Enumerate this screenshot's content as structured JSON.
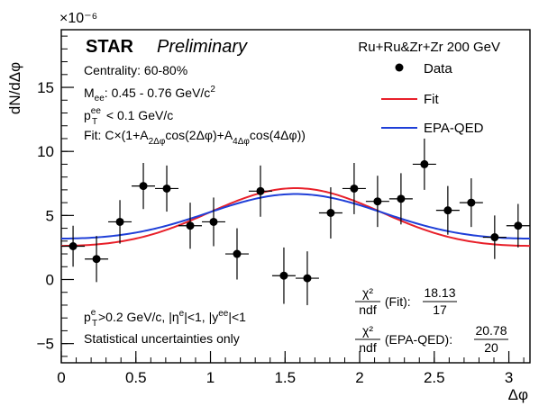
{
  "chart_data": {
    "type": "scatter",
    "title": "",
    "xlabel": "Δφ",
    "ylabel": "dN/dΔφ",
    "y_multiplier": "×10⁻⁶",
    "xlim": [
      0,
      3.1416
    ],
    "ylim": [
      -6.5,
      19.5
    ],
    "x_ticks": [
      0,
      0.5,
      1,
      1.5,
      2,
      2.5,
      3
    ],
    "x_tick_labels": [
      "0",
      "0.5",
      "1",
      "1.5",
      "2",
      "2.5",
      "3"
    ],
    "y_ticks": [
      -5,
      0,
      5,
      10,
      15
    ],
    "y_tick_labels": [
      "−5",
      "0",
      "5",
      "10",
      "15"
    ],
    "grid": false,
    "legend_position": "top-right",
    "experiment": "STAR",
    "status": "Preliminary",
    "collision_system": "Ru+Ru&Zr+Zr 200 GeV",
    "annotations": {
      "centrality": "Centrality: 60-80%",
      "mass_label": "M",
      "mass_sub": "ee",
      "mass_value": ": 0.45 - 0.76 GeV/c",
      "mass_sup": "2",
      "pt_label": "p",
      "pt_sup": "ee",
      "pt_sub": "T",
      "pt_value": " < 0.1 GeV/c",
      "fit_p1": "Fit: C×(1+A",
      "fit_sub1": "2Δφ",
      "fit_p2": "cos(2Δφ)+A",
      "fit_sub2": "4Δφ",
      "fit_p3": "cos(4Δφ))",
      "cut_p": "p",
      "cut_sup": "e",
      "cut_sub": "T",
      "cut_rest1": ">0.2 GeV/c, |η",
      "cut_sup2": "e",
      "cut_rest2": "|<1, |y",
      "cut_sup3": "ee",
      "cut_rest3": "|<1",
      "stat_note": "Statistical uncertainties only",
      "chi2_num": "χ²",
      "chi2_den": "ndf",
      "chi2_fit_label": " (Fit): ",
      "chi2_fit_num": "18.13",
      "chi2_fit_den": "17",
      "chi2_epa_label": " (EPA-QED): ",
      "chi2_epa_num": "20.78",
      "chi2_epa_den": "20"
    },
    "legend": [
      {
        "name": "Data",
        "kind": "marker",
        "color": "#000000"
      },
      {
        "name": "Fit",
        "kind": "line",
        "color": "#e8202a"
      },
      {
        "name": "EPA-QED",
        "kind": "line",
        "color": "#1f3fd8"
      }
    ],
    "series": [
      {
        "name": "Data",
        "x": [
          0.079,
          0.236,
          0.393,
          0.55,
          0.707,
          0.864,
          1.021,
          1.178,
          1.335,
          1.492,
          1.649,
          1.806,
          1.963,
          2.12,
          2.277,
          2.434,
          2.591,
          2.748,
          2.905,
          3.062
        ],
        "y": [
          2.6,
          1.6,
          4.5,
          7.3,
          7.1,
          4.2,
          4.5,
          2.0,
          6.9,
          0.3,
          0.1,
          5.2,
          7.1,
          6.1,
          6.3,
          9.0,
          5.4,
          6.0,
          3.3,
          4.2
        ],
        "y_err": [
          1.6,
          1.8,
          1.7,
          1.8,
          1.8,
          1.8,
          1.9,
          2.0,
          2.0,
          2.2,
          2.1,
          2.0,
          2.0,
          2.0,
          2.0,
          2.0,
          1.9,
          1.9,
          1.7,
          1.7
        ],
        "x_err": 0.0785
      },
      {
        "name": "Fit",
        "function": "C*(1+A2*cos(2x)+A4*cos(4x))",
        "C": 4.55,
        "A2": -0.4945,
        "A4": 0.0725
      },
      {
        "name": "EPA-QED",
        "function": "C*(1+A2*cos(2x)+A4*cos(4x))",
        "C": 4.7,
        "A2": -0.37,
        "A4": 0.05
      }
    ]
  }
}
